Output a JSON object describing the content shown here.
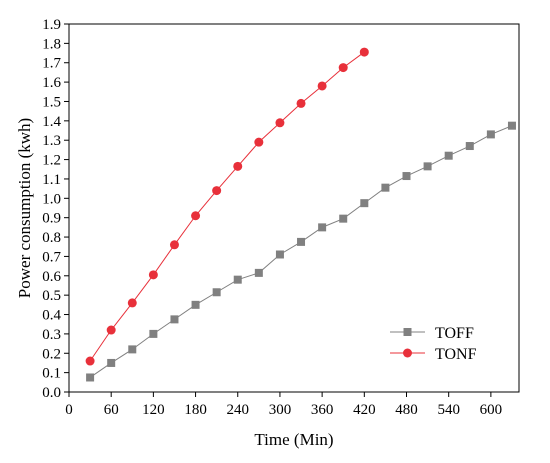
{
  "chart_data": {
    "type": "line",
    "xlabel": "Time (Min)",
    "ylabel": "Power consumption (kwh)",
    "xlim": [
      0,
      640
    ],
    "ylim": [
      0,
      1.9
    ],
    "x_ticks": [
      0,
      60,
      120,
      180,
      240,
      300,
      360,
      420,
      480,
      540,
      600
    ],
    "y_ticks": [
      0.0,
      0.1,
      0.2,
      0.3,
      0.4,
      0.5,
      0.6,
      0.7,
      0.8,
      0.9,
      1.0,
      1.1,
      1.2,
      1.3,
      1.4,
      1.5,
      1.6,
      1.7,
      1.8,
      1.9
    ],
    "y_tick_labels": [
      "0.0",
      "0.1",
      "0.2",
      "0.3",
      "0.4",
      "0.5",
      "0.6",
      "0.7",
      "0.8",
      "0.9",
      "1.0",
      "1.1",
      "1.2",
      "1.3",
      "1.4",
      "1.5",
      "1.6",
      "1.7",
      "1.8",
      "1.9"
    ],
    "grid": false,
    "legend_position": "bottom-right",
    "series": [
      {
        "name": "TOFF",
        "marker": "square",
        "color": "#808080",
        "x": [
          30,
          60,
          90,
          120,
          150,
          180,
          210,
          240,
          270,
          300,
          330,
          360,
          390,
          420,
          450,
          480,
          510,
          540,
          570,
          600,
          630
        ],
        "values": [
          0.075,
          0.15,
          0.22,
          0.3,
          0.375,
          0.45,
          0.515,
          0.58,
          0.615,
          0.71,
          0.775,
          0.85,
          0.895,
          0.975,
          1.055,
          1.115,
          1.165,
          1.22,
          1.27,
          1.33,
          1.375
        ]
      },
      {
        "name": "TONF",
        "marker": "circle",
        "color": "#e8303a",
        "x": [
          30,
          60,
          90,
          120,
          150,
          180,
          210,
          240,
          270,
          300,
          330,
          360,
          390,
          420
        ],
        "values": [
          0.16,
          0.32,
          0.46,
          0.605,
          0.76,
          0.91,
          1.04,
          1.165,
          1.29,
          1.39,
          1.49,
          1.58,
          1.675,
          1.755
        ]
      }
    ]
  }
}
